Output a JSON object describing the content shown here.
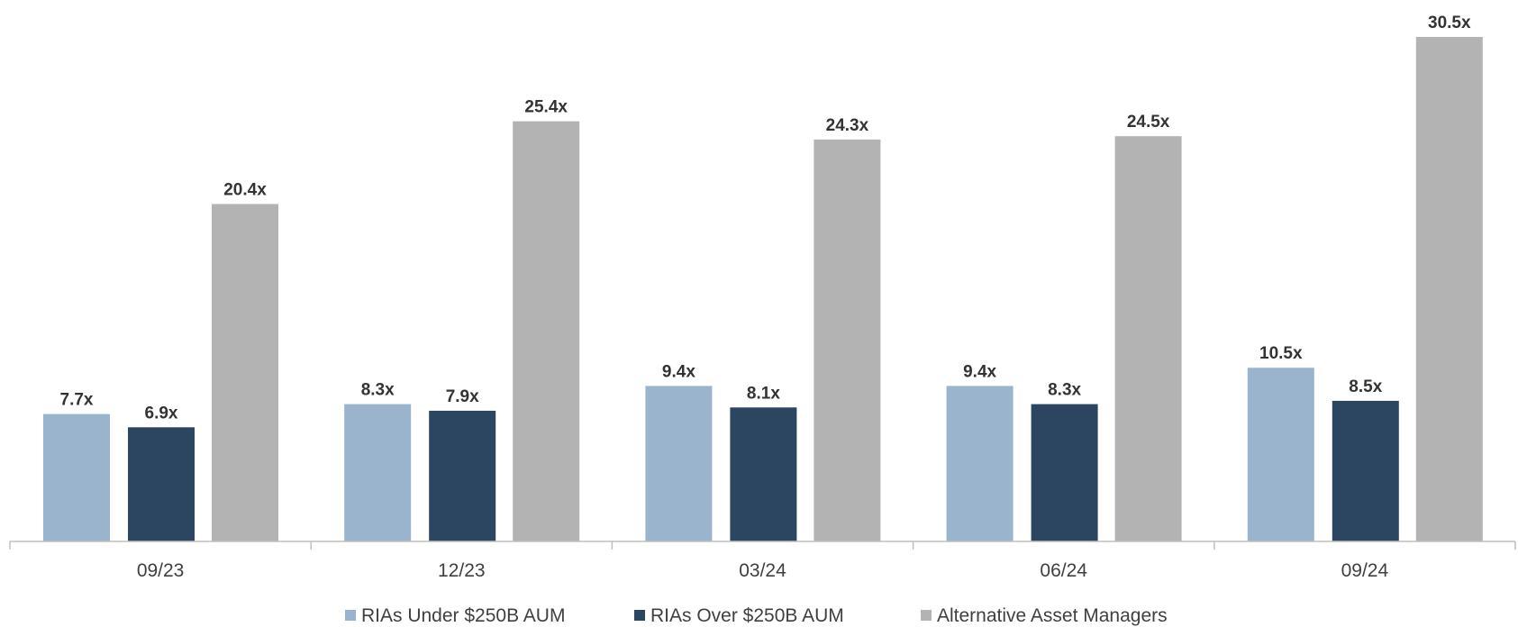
{
  "chart_data": {
    "type": "bar",
    "categories": [
      "09/23",
      "12/23",
      "03/24",
      "06/24",
      "09/24"
    ],
    "series": [
      {
        "name": "RIAs Under $250B AUM",
        "color": "#9ab4cd",
        "values": [
          7.7,
          8.3,
          9.4,
          9.4,
          10.5
        ],
        "labels": [
          "7.7x",
          "8.3x",
          "9.4x",
          "9.4x",
          "10.5x"
        ]
      },
      {
        "name": "RIAs Over $250B AUM",
        "color": "#2c4560",
        "values": [
          6.9,
          7.9,
          8.1,
          8.3,
          8.5
        ],
        "labels": [
          "6.9x",
          "7.9x",
          "8.1x",
          "8.3x",
          "8.5x"
        ]
      },
      {
        "name": "Alternative Asset Managers",
        "color": "#b3b3b3",
        "values": [
          20.4,
          25.4,
          24.3,
          24.5,
          30.5
        ],
        "labels": [
          "20.4x",
          "25.4x",
          "24.3x",
          "24.5x",
          "30.5x"
        ]
      }
    ],
    "ylim": [
      0,
      30.5
    ],
    "grid": false,
    "legend_position": "bottom"
  }
}
